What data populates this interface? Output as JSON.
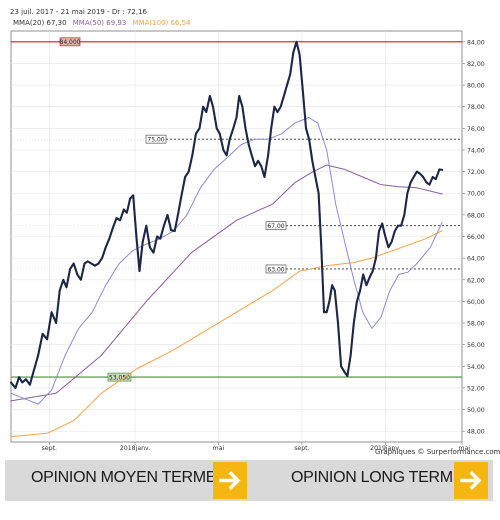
{
  "header": {
    "date_range": "23 juil. 2017 - 21 mai 2019 - Dr : 72,16",
    "mma20": "MMA(20)",
    "mma20_val": "67,30",
    "mma50": "MMA(50)",
    "mma50_val": "69,93",
    "mma100": "MMA(100)",
    "mma100_val": "66,54"
  },
  "credit": "Graphiques © Surperformance.com",
  "opinions": {
    "mid": "OPINION MOYEN TERME",
    "long": "OPINION LONG TERME"
  },
  "colors": {
    "price": "#1c2747",
    "mma20": "#8a8bd2",
    "mma50": "#8c5c9e",
    "mma100": "#f3a443",
    "resistance": "#c3221e",
    "support": "#4b8b3b",
    "level": "#333333",
    "accent": "#f6b612"
  },
  "chart_data": {
    "type": "line",
    "ylim": [
      47,
      85
    ],
    "xlim": [
      0,
      100
    ],
    "y_ticks": [
      "48,00",
      "50,00",
      "52,00",
      "54,00",
      "56,00",
      "58,00",
      "60,00",
      "62,00",
      "64,00",
      "66,00",
      "68,00",
      "70,00",
      "72,00",
      "74,00",
      "76,00",
      "78,00",
      "80,00",
      "82,00",
      "84,00"
    ],
    "x_ticks": [
      {
        "label": "sept.",
        "x": 8.5
      },
      {
        "label": "2018janv.",
        "x": 27.5
      },
      {
        "label": "mai",
        "x": 46
      },
      {
        "label": "sept.",
        "x": 64.5
      },
      {
        "label": "2019janv.",
        "x": 83
      },
      {
        "label": "mai",
        "x": 100.5
      }
    ],
    "levels": [
      {
        "value": 84,
        "label": "84,000",
        "style": "resistance"
      },
      {
        "value": 75,
        "label": "75,00",
        "style": "dotted"
      },
      {
        "value": 67,
        "label": "67,00",
        "style": "dotted"
      },
      {
        "value": 63,
        "label": "63,00",
        "style": "dotted"
      },
      {
        "value": 53,
        "label": "53,050",
        "style": "support"
      }
    ],
    "series": [
      {
        "key": "price",
        "values": [
          [
            0,
            52.5
          ],
          [
            1,
            52
          ],
          [
            1.8,
            53
          ],
          [
            2.5,
            52.5
          ],
          [
            3.3,
            52.8
          ],
          [
            4.2,
            52.3
          ],
          [
            5,
            53.5
          ],
          [
            6,
            55
          ],
          [
            7,
            57
          ],
          [
            8,
            56.5
          ],
          [
            9,
            59
          ],
          [
            10,
            58
          ],
          [
            10.8,
            61
          ],
          [
            11.6,
            62
          ],
          [
            12.3,
            61.3
          ],
          [
            13.1,
            63
          ],
          [
            13.9,
            63.5
          ],
          [
            14.7,
            62.5
          ],
          [
            15.5,
            62
          ],
          [
            16.3,
            63.5
          ],
          [
            17,
            63.7
          ],
          [
            17.8,
            63.5
          ],
          [
            18.6,
            63.3
          ],
          [
            19.4,
            63.5
          ],
          [
            20.2,
            64
          ],
          [
            21,
            65
          ],
          [
            21.8,
            65.8
          ],
          [
            22.6,
            66.8
          ],
          [
            23.4,
            67.7
          ],
          [
            24.2,
            67.5
          ],
          [
            25,
            68.5
          ],
          [
            25.7,
            68.2
          ],
          [
            26.4,
            69.5
          ],
          [
            27.1,
            69.8
          ],
          [
            27.8,
            66
          ],
          [
            28.5,
            62.8
          ],
          [
            29.2,
            65.5
          ],
          [
            30,
            67
          ],
          [
            30.8,
            65
          ],
          [
            31.6,
            64.5
          ],
          [
            32.4,
            66
          ],
          [
            33.1,
            65.8
          ],
          [
            33.9,
            67
          ],
          [
            34.7,
            68
          ],
          [
            35.5,
            66.6
          ],
          [
            36.3,
            66.5
          ],
          [
            37,
            68
          ],
          [
            37.8,
            69.8
          ],
          [
            38.6,
            71.5
          ],
          [
            39.4,
            72
          ],
          [
            40.2,
            73.5
          ],
          [
            41,
            75.5
          ],
          [
            41.8,
            76
          ],
          [
            42.6,
            78
          ],
          [
            43.3,
            77.5
          ],
          [
            44.1,
            79
          ],
          [
            44.8,
            78
          ],
          [
            45.6,
            76
          ],
          [
            46.3,
            75.5
          ],
          [
            47.1,
            74
          ],
          [
            47.8,
            73.5
          ],
          [
            48.5,
            75
          ],
          [
            49.3,
            76
          ],
          [
            50,
            77
          ],
          [
            50.6,
            79
          ],
          [
            51.3,
            78
          ],
          [
            52,
            76
          ],
          [
            52.7,
            74.5
          ],
          [
            53.4,
            73.5
          ],
          [
            54.1,
            72.5
          ],
          [
            54.8,
            73
          ],
          [
            55.5,
            72.5
          ],
          [
            56.2,
            71.5
          ],
          [
            57,
            73.5
          ],
          [
            57.7,
            76
          ],
          [
            58.4,
            78
          ],
          [
            59.1,
            77.5
          ],
          [
            59.8,
            78
          ],
          [
            60.5,
            79
          ],
          [
            61.2,
            80
          ],
          [
            61.9,
            81
          ],
          [
            62.6,
            83
          ],
          [
            63.3,
            84
          ],
          [
            64,
            82.8
          ],
          [
            64.7,
            79.5
          ],
          [
            65.4,
            76
          ],
          [
            66.1,
            75
          ],
          [
            66.8,
            73
          ],
          [
            67.5,
            71.5
          ],
          [
            68.2,
            70
          ],
          [
            68.8,
            65
          ],
          [
            69.4,
            59
          ],
          [
            70,
            59
          ],
          [
            70.6,
            60
          ],
          [
            71.2,
            61.5
          ],
          [
            71.8,
            61
          ],
          [
            72.5,
            58
          ],
          [
            73.2,
            54
          ],
          [
            73.9,
            53.5
          ],
          [
            74.6,
            53.1
          ],
          [
            75.3,
            55
          ],
          [
            76,
            58
          ],
          [
            76.7,
            60
          ],
          [
            77.4,
            61
          ],
          [
            78.1,
            62.5
          ],
          [
            78.8,
            61.5
          ],
          [
            79.5,
            62.2
          ],
          [
            80.2,
            62.8
          ],
          [
            80.9,
            64
          ],
          [
            81.6,
            66.5
          ],
          [
            82.3,
            67.2
          ],
          [
            83,
            66
          ],
          [
            83.7,
            65
          ],
          [
            84.4,
            65.5
          ],
          [
            85.1,
            66.5
          ],
          [
            85.8,
            67
          ],
          [
            86.5,
            67
          ],
          [
            87.2,
            68
          ],
          [
            87.9,
            70
          ],
          [
            88.6,
            71
          ],
          [
            89.3,
            71.5
          ],
          [
            90,
            72
          ],
          [
            90.7,
            71.8
          ],
          [
            91.4,
            71.5
          ],
          [
            92.1,
            71
          ],
          [
            92.8,
            70.8
          ],
          [
            93.5,
            71.5
          ],
          [
            94.2,
            71.3
          ],
          [
            95,
            72.2
          ],
          [
            95.6,
            72.16
          ]
        ]
      },
      {
        "key": "mma20",
        "values": [
          [
            0,
            51.5
          ],
          [
            3,
            51
          ],
          [
            6,
            50.5
          ],
          [
            9,
            51.8
          ],
          [
            12,
            55
          ],
          [
            15,
            57.5
          ],
          [
            18,
            59
          ],
          [
            21,
            61.5
          ],
          [
            24,
            63.5
          ],
          [
            27,
            64.7
          ],
          [
            30,
            65.3
          ],
          [
            33,
            65.8
          ],
          [
            36,
            66.5
          ],
          [
            39,
            68
          ],
          [
            42,
            70.5
          ],
          [
            45,
            72.2
          ],
          [
            48,
            73.3
          ],
          [
            51,
            74.5
          ],
          [
            54,
            75
          ],
          [
            57,
            75
          ],
          [
            60,
            75.5
          ],
          [
            63,
            76.5
          ],
          [
            66,
            77
          ],
          [
            68,
            76.5
          ],
          [
            70,
            74
          ],
          [
            72,
            69
          ],
          [
            74,
            65.5
          ],
          [
            76,
            62
          ],
          [
            78,
            59
          ],
          [
            80,
            57.5
          ],
          [
            82,
            58.5
          ],
          [
            84,
            61
          ],
          [
            86,
            62.5
          ],
          [
            88,
            62.7
          ],
          [
            90,
            63.5
          ],
          [
            93,
            65
          ],
          [
            95.6,
            67.3
          ]
        ]
      },
      {
        "key": "mma50",
        "values": [
          [
            0,
            50.8
          ],
          [
            10,
            51.5
          ],
          [
            20,
            55
          ],
          [
            30,
            60
          ],
          [
            40,
            64.5
          ],
          [
            50,
            67.5
          ],
          [
            58,
            69
          ],
          [
            63,
            71
          ],
          [
            67,
            72
          ],
          [
            70,
            72.6
          ],
          [
            74,
            72.2
          ],
          [
            78,
            71.5
          ],
          [
            82,
            70.8
          ],
          [
            86,
            70.6
          ],
          [
            90,
            70.5
          ],
          [
            95.6,
            69.93
          ]
        ]
      },
      {
        "key": "mma100",
        "values": [
          [
            0,
            47.5
          ],
          [
            8,
            47.8
          ],
          [
            14,
            49
          ],
          [
            20,
            51.5
          ],
          [
            28,
            53.8
          ],
          [
            36,
            55.5
          ],
          [
            44,
            57.5
          ],
          [
            52,
            59.5
          ],
          [
            58,
            61
          ],
          [
            64,
            62.8
          ],
          [
            70,
            63.3
          ],
          [
            76,
            63.6
          ],
          [
            80,
            64
          ],
          [
            84,
            64.6
          ],
          [
            88,
            65.2
          ],
          [
            92,
            65.8
          ],
          [
            95.6,
            66.54
          ]
        ]
      }
    ]
  }
}
